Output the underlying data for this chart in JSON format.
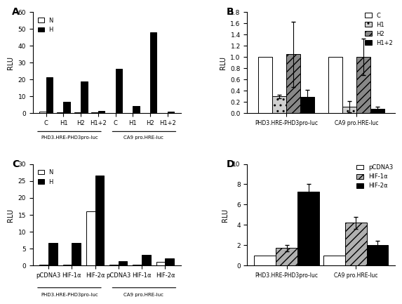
{
  "A": {
    "title": "A",
    "ylabel": "RLU",
    "ylim": [
      0,
      60
    ],
    "yticks": [
      0,
      10,
      20,
      30,
      40,
      50,
      60
    ],
    "groups": [
      "C",
      "H1",
      "H2",
      "H1+2",
      "C",
      "H1",
      "H2",
      "H1+2"
    ],
    "N_values": [
      1.0,
      0.5,
      0.5,
      0.5,
      0.3,
      0.3,
      0.3,
      0.3
    ],
    "H_values": [
      21.5,
      7.0,
      19.0,
      1.2,
      26.5,
      4.2,
      48.0,
      1.1
    ],
    "xlabel1": "PHD3.HRE-PHD3pro-luc",
    "xlabel2": "CA9 pro.HRE-luc",
    "legend": [
      "N",
      "H"
    ]
  },
  "B": {
    "title": "B",
    "ylabel": "RLU",
    "ylim": [
      0,
      1.8
    ],
    "yticks": [
      0.0,
      0.2,
      0.4,
      0.6,
      0.8,
      1.0,
      1.2,
      1.4,
      1.6,
      1.8
    ],
    "groups": [
      "PHD3.HRE-PHD3pro-luc",
      "CA9 pro.HRE-luc"
    ],
    "series_labels": [
      "C",
      "H1",
      "H2",
      "H1+2"
    ],
    "values": [
      [
        1.0,
        0.3,
        1.05,
        0.29
      ],
      [
        1.0,
        0.12,
        1.0,
        0.08
      ]
    ],
    "errors": [
      [
        0.0,
        0.03,
        0.58,
        0.12
      ],
      [
        0.0,
        0.1,
        0.32,
        0.04
      ]
    ],
    "legend": [
      "C",
      "H1",
      "H2",
      "H1+2"
    ]
  },
  "C": {
    "title": "C",
    "ylabel": "RLU",
    "ylim": [
      0,
      30
    ],
    "yticks": [
      0,
      5,
      10,
      15,
      20,
      25,
      30
    ],
    "groups": [
      "pCDNA3",
      "HIF-1α",
      "HIF-2α",
      "pCDNA3",
      "HIF-1α",
      "HIF-2α"
    ],
    "N_values": [
      0.3,
      0.3,
      16.0,
      0.3,
      0.3,
      1.0
    ],
    "H_values": [
      6.6,
      6.7,
      26.5,
      1.3,
      3.2,
      2.1
    ],
    "xlabel1": "PHD3.HRE-PHD3pro-luc",
    "xlabel2": "CA9 pro.HRE-luc",
    "legend": [
      "N",
      "H"
    ]
  },
  "D": {
    "title": "D",
    "ylabel": "RLU",
    "ylim": [
      0,
      10.0
    ],
    "yticks": [
      0.0,
      2.0,
      4.0,
      6.0,
      8.0,
      10.0
    ],
    "groups": [
      "PHD3.HRE-PHD3pro-luc",
      "CA9 pro.HRE-luc"
    ],
    "series_labels": [
      "pCDNA3",
      "HIF-1α",
      "HIF-2α"
    ],
    "values": [
      [
        1.0,
        1.7,
        7.3
      ],
      [
        1.0,
        4.2,
        2.0
      ]
    ],
    "errors": [
      [
        0.0,
        0.3,
        0.7
      ],
      [
        0.0,
        0.6,
        0.4
      ]
    ],
    "legend": [
      "pCDNA3",
      "HIF-1α",
      "HIF-2α"
    ]
  }
}
